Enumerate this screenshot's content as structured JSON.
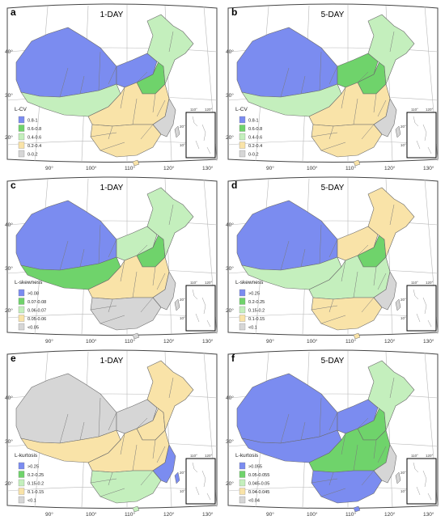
{
  "colors": {
    "blue": "#7b8cf0",
    "green": "#6fd36b",
    "lightgreen": "#c4efbd",
    "tan": "#f9e3a8",
    "gray": "#d6d6d6"
  },
  "lon_ticks": [
    "90°",
    "100°",
    "110°",
    "120°",
    "130°"
  ],
  "lat_ticks": [
    "40°",
    "30°",
    "20°"
  ],
  "inset_ticks": {
    "lon": [
      "110°",
      "120°"
    ],
    "lat": [
      "20°",
      "10°"
    ]
  },
  "panels": [
    {
      "letter": "a",
      "title": "1-DAY",
      "legend_title": "L-CV",
      "legend": [
        {
          "label": "0.8-1",
          "color": "blue"
        },
        {
          "label": "0.6-0.8",
          "color": "green"
        },
        {
          "label": "0.4-0.6",
          "color": "lightgreen"
        },
        {
          "label": "0.2-0.4",
          "color": "tan"
        },
        {
          "label": "0-0.2",
          "color": "gray"
        }
      ],
      "regions": {
        "west": "blue",
        "tibet": "lightgreen",
        "north": "blue",
        "beijing": "green",
        "northeast": "lightgreen",
        "central": "tan",
        "south": "tan",
        "southeast": "gray"
      }
    },
    {
      "letter": "b",
      "title": "5-DAY",
      "legend_title": "L-CV",
      "legend": [
        {
          "label": "0.8-1",
          "color": "blue"
        },
        {
          "label": "0.6-0.8",
          "color": "green"
        },
        {
          "label": "0.4-0.6",
          "color": "lightgreen"
        },
        {
          "label": "0.2-0.4",
          "color": "tan"
        },
        {
          "label": "0-0.2",
          "color": "gray"
        }
      ],
      "regions": {
        "west": "blue",
        "tibet": "lightgreen",
        "north": "green",
        "beijing": "green",
        "northeast": "lightgreen",
        "central": "tan",
        "south": "tan",
        "southeast": "gray"
      }
    },
    {
      "letter": "c",
      "title": "1-DAY",
      "legend_title": "L-skewness",
      "legend": [
        {
          "label": ">0.08",
          "color": "blue"
        },
        {
          "label": "0.07-0.08",
          "color": "green"
        },
        {
          "label": "0.06-0.07",
          "color": "lightgreen"
        },
        {
          "label": "0.05-0.06",
          "color": "tan"
        },
        {
          "label": "<0.05",
          "color": "gray"
        }
      ],
      "regions": {
        "west": "blue",
        "tibet": "green",
        "north": "lightgreen",
        "beijing": "green",
        "northeast": "lightgreen",
        "central": "tan",
        "south": "gray",
        "southeast": "gray"
      }
    },
    {
      "letter": "d",
      "title": "5-DAY",
      "legend_title": "L-skewness",
      "legend": [
        {
          "label": ">0.25",
          "color": "blue"
        },
        {
          "label": "0.2-0.25",
          "color": "green"
        },
        {
          "label": "0.15-0.2",
          "color": "lightgreen"
        },
        {
          "label": "0.1-0.15",
          "color": "tan"
        },
        {
          "label": "<0.1",
          "color": "gray"
        }
      ],
      "regions": {
        "west": "blue",
        "tibet": "lightgreen",
        "north": "tan",
        "beijing": "green",
        "northeast": "tan",
        "central": "lightgreen",
        "south": "tan",
        "southeast": "gray"
      }
    },
    {
      "letter": "e",
      "title": "1-DAY",
      "legend_title": "L-kurtosis",
      "legend": [
        {
          "label": ">0.25",
          "color": "blue"
        },
        {
          "label": "0.2-0.25",
          "color": "green"
        },
        {
          "label": "0.15-0.2",
          "color": "lightgreen"
        },
        {
          "label": "0.1-0.15",
          "color": "tan"
        },
        {
          "label": "<0.1",
          "color": "gray"
        }
      ],
      "regions": {
        "west": "gray",
        "tibet": "tan",
        "north": "gray",
        "beijing": "tan",
        "northeast": "tan",
        "central": "tan",
        "south": "lightgreen",
        "southeast": "blue"
      }
    },
    {
      "letter": "f",
      "title": "5-DAY",
      "legend_title": "L-kurtosis",
      "legend": [
        {
          "label": ">0.055",
          "color": "blue"
        },
        {
          "label": "0.05-0.055",
          "color": "green"
        },
        {
          "label": "0.045-0.05",
          "color": "lightgreen"
        },
        {
          "label": "0.04-0.045",
          "color": "tan"
        },
        {
          "label": "<0.04",
          "color": "gray"
        }
      ],
      "regions": {
        "west": "blue",
        "tibet": "blue",
        "north": "blue",
        "beijing": "green",
        "northeast": "lightgreen",
        "central": "green",
        "south": "blue",
        "southeast": "gray"
      }
    }
  ]
}
